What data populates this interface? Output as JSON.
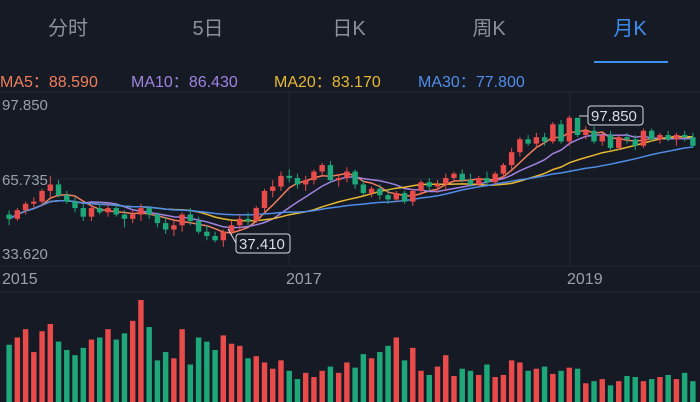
{
  "tabs": [
    {
      "label": "分时",
      "active": false
    },
    {
      "label": "5日",
      "active": false
    },
    {
      "label": "日K",
      "active": false
    },
    {
      "label": "周K",
      "active": false
    },
    {
      "label": "月K",
      "active": true
    }
  ],
  "ma_indicators": [
    {
      "label": "MA5：",
      "value": "88.590",
      "color": "#f07e5d"
    },
    {
      "label": "MA10：",
      "value": "86.430",
      "color": "#a083e0"
    },
    {
      "label": "MA20：",
      "value": "83.170",
      "color": "#e8b832"
    },
    {
      "label": "MA30：",
      "value": "77.800",
      "color": "#4f8de8"
    }
  ],
  "price_axis": {
    "top": "97.850",
    "mid": "65.735",
    "bottom": "33.620"
  },
  "time_axis": [
    "2015",
    "2017",
    "2019"
  ],
  "callouts": {
    "high": "97.850",
    "low": "37.410"
  },
  "colors": {
    "up": "#e94b4b",
    "down": "#1ea87a",
    "background": "#151a24",
    "accent": "#3d8ff0"
  },
  "chart_data": {
    "type": "candlestick",
    "ylim": [
      33.62,
      97.85
    ],
    "candles": [
      [
        52,
        54,
        47,
        50
      ],
      [
        50,
        55,
        49,
        54
      ],
      [
        54,
        58,
        52,
        57
      ],
      [
        57,
        60,
        55,
        58
      ],
      [
        58,
        64,
        56,
        63
      ],
      [
        63,
        70,
        60,
        66
      ],
      [
        66,
        68,
        60,
        61
      ],
      [
        61,
        63,
        57,
        58
      ],
      [
        58,
        60,
        53,
        55
      ],
      [
        55,
        57,
        49,
        51
      ],
      [
        51,
        56,
        49,
        55
      ],
      [
        55,
        57,
        52,
        53
      ],
      [
        53,
        57,
        51,
        55
      ],
      [
        55,
        57,
        51,
        52
      ],
      [
        52,
        54,
        46,
        50
      ],
      [
        50,
        54,
        48,
        52
      ],
      [
        52,
        57,
        49,
        55
      ],
      [
        55,
        56,
        50,
        52
      ],
      [
        52,
        53,
        46,
        48
      ],
      [
        48,
        51,
        43,
        45
      ],
      [
        45,
        49,
        42,
        47
      ],
      [
        47,
        53,
        44,
        52
      ],
      [
        52,
        55,
        47,
        49
      ],
      [
        49,
        51,
        43,
        44
      ],
      [
        44,
        47,
        40,
        42
      ],
      [
        42,
        44,
        39,
        40
      ],
      [
        40,
        45,
        37,
        44
      ],
      [
        44,
        49,
        42,
        47
      ],
      [
        47,
        52,
        45,
        50
      ],
      [
        50,
        53,
        47,
        49
      ],
      [
        49,
        56,
        48,
        55
      ],
      [
        55,
        64,
        53,
        63
      ],
      [
        63,
        68,
        60,
        65
      ],
      [
        65,
        72,
        63,
        70
      ],
      [
        70,
        73,
        67,
        69
      ],
      [
        69,
        71,
        64,
        66
      ],
      [
        66,
        70,
        63,
        68
      ],
      [
        68,
        73,
        66,
        72
      ],
      [
        72,
        76,
        70,
        75
      ],
      [
        75,
        77,
        67,
        68
      ],
      [
        68,
        71,
        65,
        69
      ],
      [
        69,
        74,
        67,
        72
      ],
      [
        72,
        73,
        64,
        66
      ],
      [
        66,
        68,
        61,
        62
      ],
      [
        62,
        65,
        60,
        64
      ],
      [
        64,
        66,
        59,
        61
      ],
      [
        61,
        64,
        57,
        59
      ],
      [
        59,
        63,
        58,
        62
      ],
      [
        62,
        63,
        57,
        58
      ],
      [
        58,
        64,
        56,
        63
      ],
      [
        63,
        68,
        61,
        67
      ],
      [
        67,
        69,
        63,
        65
      ],
      [
        65,
        68,
        62,
        66
      ],
      [
        66,
        71,
        63,
        69
      ],
      [
        69,
        72,
        67,
        71
      ],
      [
        71,
        73,
        67,
        68
      ],
      [
        68,
        71,
        65,
        66
      ],
      [
        66,
        70,
        65,
        69
      ],
      [
        69,
        72,
        66,
        67
      ],
      [
        67,
        72,
        66,
        71
      ],
      [
        71,
        76,
        69,
        75
      ],
      [
        75,
        83,
        73,
        81
      ],
      [
        81,
        88,
        79,
        87
      ],
      [
        87,
        89,
        84,
        85
      ],
      [
        85,
        90,
        83,
        88
      ],
      [
        88,
        90,
        84,
        86
      ],
      [
        86,
        95,
        85,
        94
      ],
      [
        94,
        96,
        85,
        86
      ],
      [
        86,
        98,
        84,
        97
      ],
      [
        97,
        97,
        88,
        89
      ],
      [
        89,
        93,
        87,
        91
      ],
      [
        91,
        93,
        85,
        86
      ],
      [
        86,
        90,
        84,
        89
      ],
      [
        89,
        91,
        82,
        83
      ],
      [
        83,
        89,
        82,
        88
      ],
      [
        88,
        90,
        85,
        87
      ],
      [
        87,
        89,
        82,
        84
      ],
      [
        84,
        92,
        83,
        91
      ],
      [
        91,
        92,
        86,
        87
      ],
      [
        87,
        90,
        85,
        89
      ],
      [
        89,
        91,
        86,
        87
      ],
      [
        87,
        90,
        84,
        89
      ],
      [
        89,
        91,
        86,
        88
      ],
      [
        88,
        90,
        83,
        84
      ]
    ],
    "volumes": [
      55,
      62,
      70,
      48,
      68,
      75,
      58,
      50,
      45,
      52,
      60,
      62,
      70,
      60,
      66,
      78,
      98,
      72,
      40,
      48,
      42,
      70,
      36,
      62,
      58,
      50,
      64,
      56,
      54,
      42,
      44,
      38,
      32,
      40,
      30,
      22,
      28,
      24,
      30,
      34,
      28,
      38,
      33,
      46,
      42,
      48,
      54,
      62,
      40,
      52,
      30,
      26,
      34,
      45,
      25,
      32,
      30,
      26,
      36,
      24,
      26,
      40,
      38,
      30,
      32,
      34,
      27,
      30,
      33,
      32,
      18,
      20,
      22,
      16,
      20,
      25,
      24,
      20,
      22,
      24,
      26,
      22,
      28,
      20
    ]
  }
}
